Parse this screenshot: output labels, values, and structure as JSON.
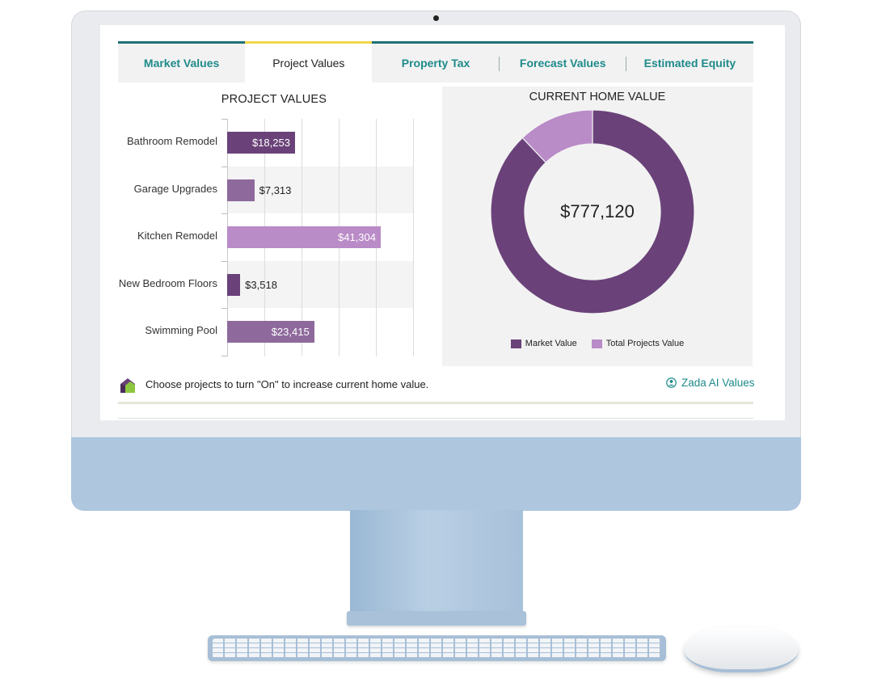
{
  "tabs": [
    {
      "label": "Market Values",
      "active": false
    },
    {
      "label": "Project Values",
      "active": true
    },
    {
      "label": "Property Tax",
      "active": false
    },
    {
      "label": "Forecast Values",
      "active": false
    },
    {
      "label": "Estimated Equity",
      "active": false
    }
  ],
  "project_chart": {
    "title": "PROJECT VALUES"
  },
  "home_value": {
    "title": "CURRENT HOME VALUE",
    "center_value": "$777,120",
    "legend": [
      {
        "label": "Market Value",
        "color": "#6a4279"
      },
      {
        "label": "Total Projects Value",
        "color": "#b98bc7"
      }
    ]
  },
  "footer": {
    "hint": "Choose projects to turn \"On\" to increase current home value.",
    "link": "Zada AI Values",
    "link_icon": "user-circle-icon",
    "brand_icon": "house-logo-icon"
  },
  "chart_data": [
    {
      "type": "bar",
      "orientation": "horizontal",
      "title": "PROJECT VALUES",
      "categories": [
        "Bathroom Remodel",
        "Garage Upgrades",
        "Kitchen Remodel",
        "New Bedroom Floors",
        "Swimming Pool"
      ],
      "values": [
        18253,
        7313,
        41304,
        3518,
        23415
      ],
      "value_labels": [
        "$18,253",
        "$7,313",
        "$41,304",
        "$3,518",
        "$23,415"
      ],
      "colors": [
        "#6a4279",
        "#8e6a9c",
        "#b98bc7",
        "#6a4279",
        "#8e6a9c"
      ],
      "xlim": [
        0,
        50000
      ],
      "grid": true
    },
    {
      "type": "pie",
      "style": "donut",
      "title": "CURRENT HOME VALUE",
      "center_label": "$777,120",
      "labels": [
        "Market Value",
        "Total Projects Value"
      ],
      "values": [
        683317,
        93803
      ],
      "colors": [
        "#6a4279",
        "#b98bc7"
      ],
      "legend": "bottom"
    }
  ]
}
